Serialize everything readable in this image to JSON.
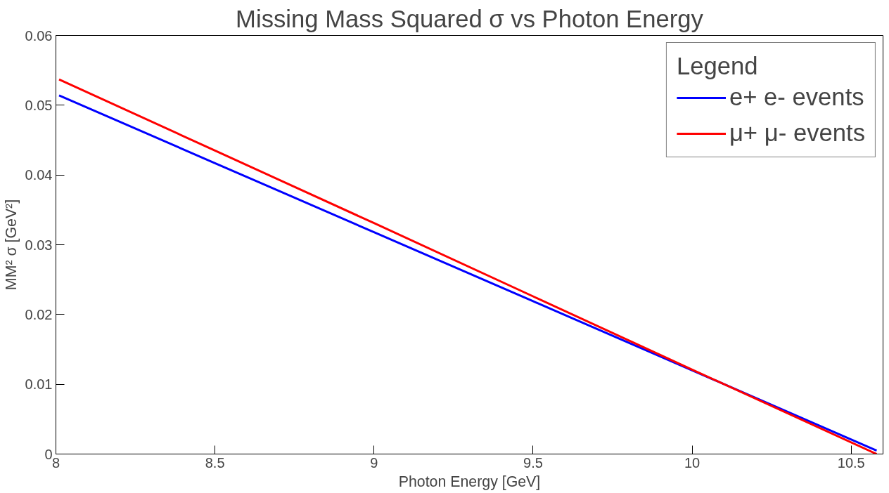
{
  "chart_data": {
    "type": "line",
    "title": "Missing Mass Squared σ vs Photon Energy",
    "xlabel": "Photon Energy [GeV]",
    "ylabel": "MM² σ [GeV²]",
    "legend_title": "Legend",
    "x": [
      8.01,
      8.5,
      9,
      9.5,
      10,
      10.58
    ],
    "series": [
      {
        "name": "e+ e- events",
        "color": "#0000ff",
        "values": [
          0.0514,
          0.0417,
          0.0318,
          0.0219,
          0.012,
          0.0005
        ]
      },
      {
        "name": "μ+ μ- events",
        "color": "#ff0000",
        "values": [
          0.0537,
          0.0435,
          0.0331,
          0.0226,
          0.0121,
          0.0
        ]
      }
    ],
    "xlim": [
      8,
      10.6
    ],
    "ylim": [
      0,
      0.06
    ],
    "xticks": [
      8,
      8.5,
      9,
      9.5,
      10,
      10.5
    ],
    "yticks": [
      0,
      0.01,
      0.02,
      0.03,
      0.04,
      0.05,
      0.06
    ],
    "grid": false,
    "legend": "top right",
    "marker": "none",
    "line_style": "solid"
  }
}
